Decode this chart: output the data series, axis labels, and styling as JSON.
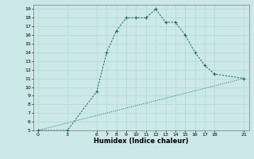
{
  "xlabel": "Humidex (Indice chaleur)",
  "ylabel": "",
  "bg_color": "#cce8e8",
  "line_color": "#1a6b6b",
  "line1_x": [
    0,
    3,
    6,
    7,
    8,
    9,
    10,
    11,
    12,
    13,
    14,
    15,
    16,
    17,
    18,
    21
  ],
  "line1_y": [
    5,
    5,
    9.5,
    14,
    16.5,
    18,
    18,
    18,
    19,
    17.5,
    17.5,
    16,
    14,
    12.5,
    11.5,
    11
  ],
  "line2_x": [
    0,
    21
  ],
  "line2_y": [
    5,
    11
  ],
  "xlim": [
    -0.5,
    21.5
  ],
  "ylim": [
    5,
    19.5
  ],
  "xticks": [
    0,
    3,
    6,
    7,
    8,
    9,
    10,
    11,
    12,
    13,
    14,
    15,
    16,
    17,
    18,
    21
  ],
  "yticks": [
    5,
    6,
    7,
    8,
    9,
    10,
    11,
    12,
    13,
    14,
    15,
    16,
    17,
    18,
    19
  ],
  "grid_color": "#afd4d4",
  "tick_fontsize": 4.5,
  "xlabel_fontsize": 6.0
}
